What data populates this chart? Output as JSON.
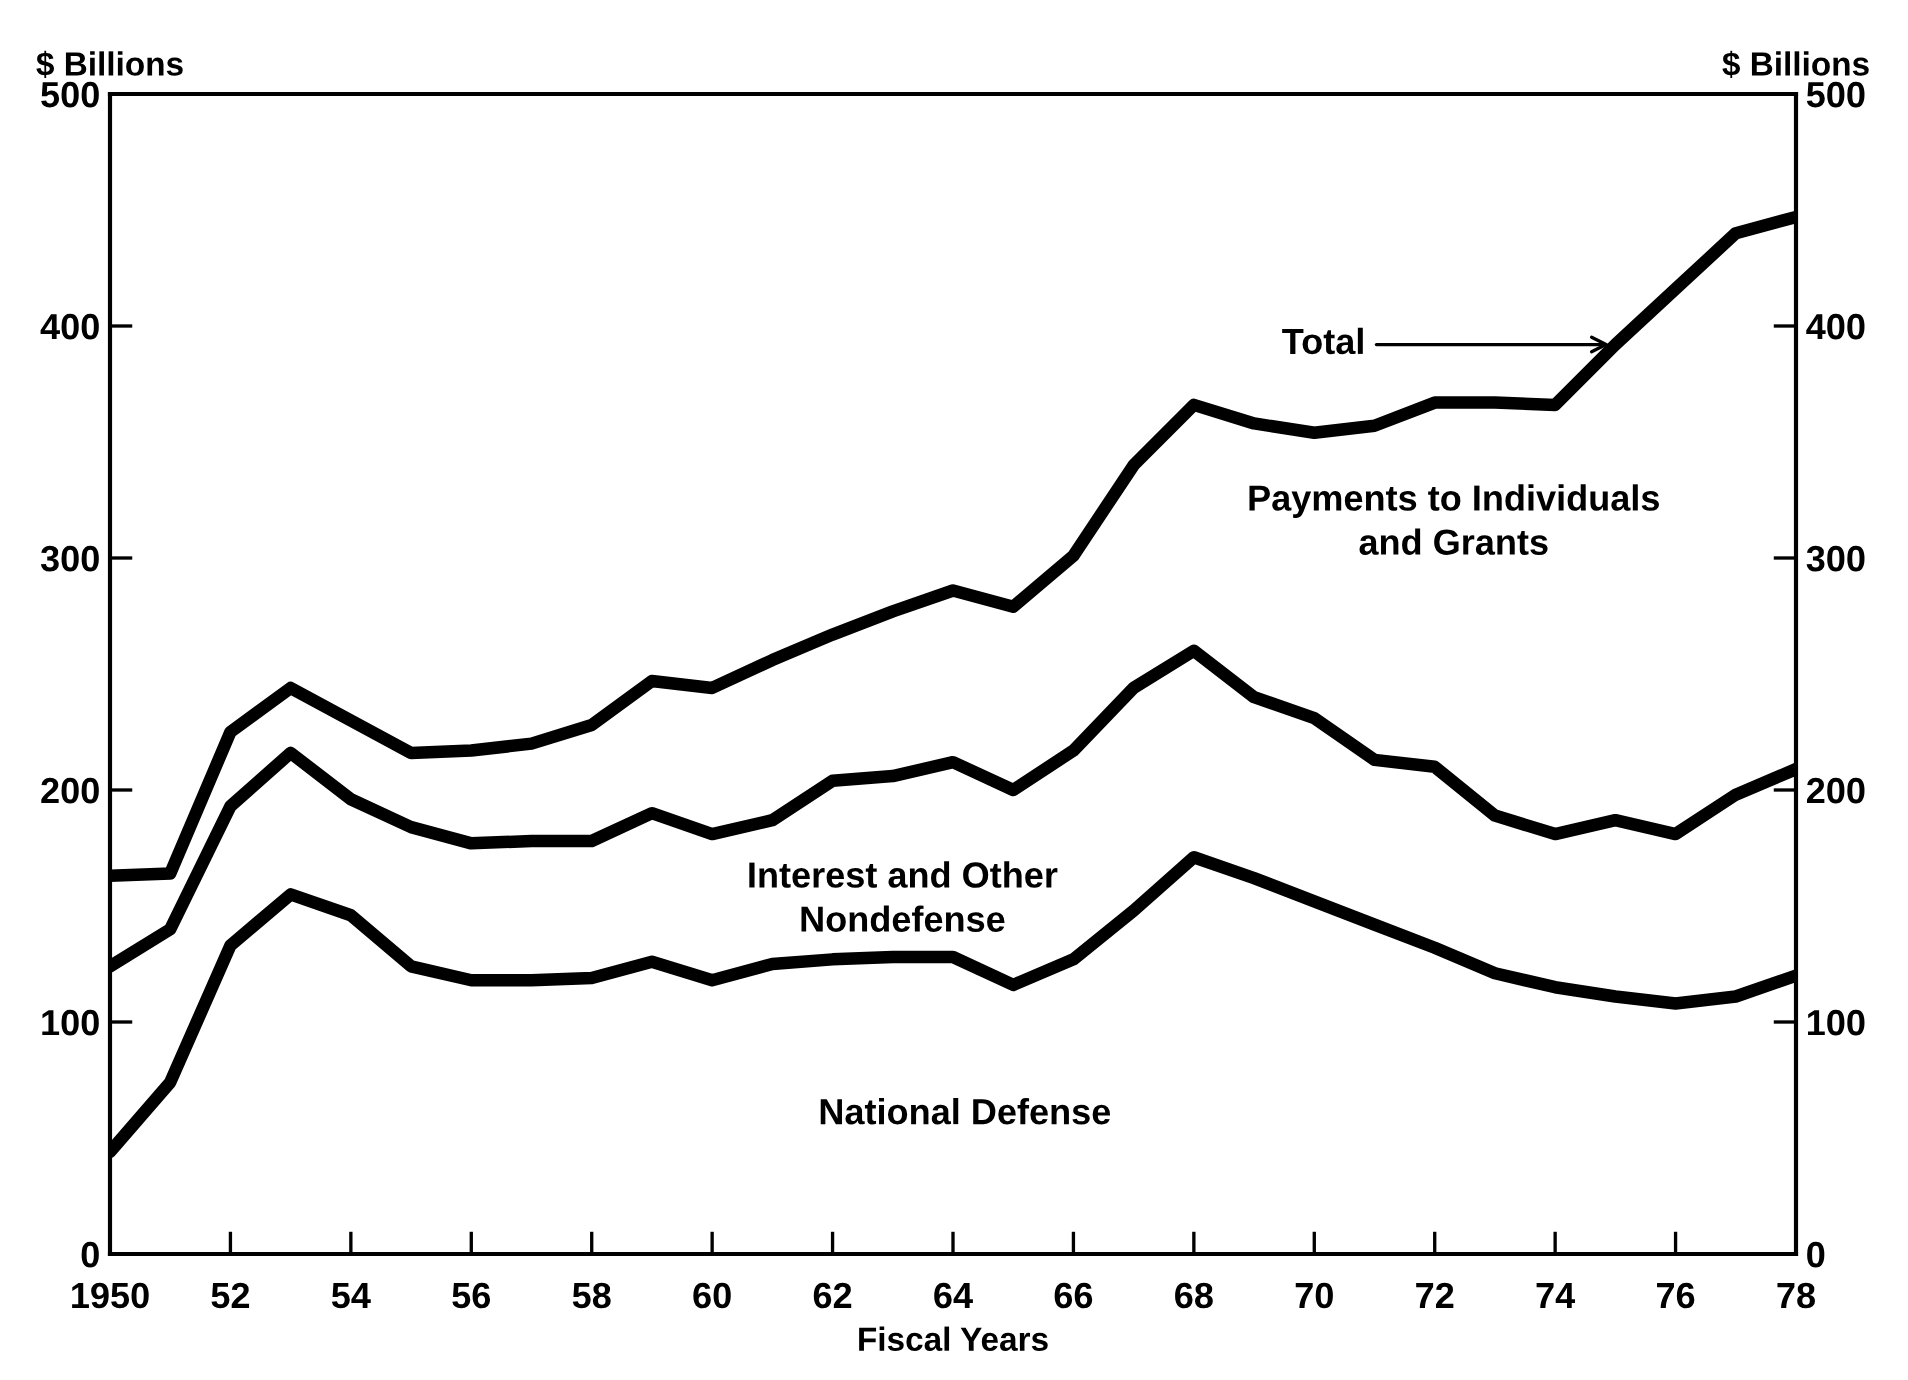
{
  "chart_data": {
    "type": "line",
    "xlabel": "Fiscal Years",
    "ylabel": "$ Billions",
    "y2label": "$ Billions",
    "x": [
      1950,
      1951,
      1952,
      1953,
      1954,
      1955,
      1956,
      1957,
      1958,
      1959,
      1960,
      1961,
      1962,
      1963,
      1964,
      1965,
      1966,
      1967,
      1968,
      1969,
      1970,
      1971,
      1972,
      1973,
      1974,
      1975,
      1976,
      1977,
      1978
    ],
    "series": [
      {
        "color": "#000000",
        "values": [
          163,
          164,
          225,
          244,
          230,
          216,
          217,
          220,
          228,
          247,
          244,
          256,
          267,
          277,
          286,
          279,
          301,
          340,
          366,
          358,
          354,
          357,
          367,
          367,
          366,
          392,
          416,
          440,
          447
        ]
      },
      {
        "color": "#000000",
        "values": [
          124,
          140,
          193,
          216,
          196,
          184,
          177,
          178,
          178,
          190,
          181,
          187,
          204,
          206,
          212,
          200,
          217,
          244,
          260,
          240,
          231,
          213,
          210,
          189,
          181,
          187,
          181,
          198,
          209
        ]
      },
      {
        "color": "#000000",
        "values": [
          44,
          74,
          133,
          155,
          146,
          124,
          118,
          118,
          119,
          126,
          118,
          125,
          127,
          128,
          128,
          116,
          127,
          148,
          171,
          162,
          152,
          142,
          132,
          121,
          115,
          111,
          108,
          111,
          120
        ]
      }
    ],
    "xlim": [
      1950,
      1978
    ],
    "xticks": [
      1950,
      {
        "value": 1952,
        "label": "52"
      },
      {
        "value": 1954,
        "label": "54"
      },
      {
        "value": 1956,
        "label": "56"
      },
      {
        "value": 1958,
        "label": "58"
      },
      {
        "value": 1960,
        "label": "60"
      },
      {
        "value": 1962,
        "label": "62"
      },
      {
        "value": 1964,
        "label": "64"
      },
      {
        "value": 1966,
        "label": "66"
      },
      {
        "value": 1968,
        "label": "68"
      },
      {
        "value": 1970,
        "label": "70"
      },
      {
        "value": 1972,
        "label": "72"
      },
      {
        "value": 1974,
        "label": "74"
      },
      {
        "value": 1976,
        "label": "76"
      },
      {
        "value": 1978,
        "label": "78"
      }
    ],
    "ylim": [
      0,
      500
    ],
    "yticks": [
      0,
      100,
      200,
      300,
      400,
      500
    ],
    "y2lim": [
      0,
      500
    ],
    "y2ticks": [
      0,
      100,
      200,
      300,
      400,
      500
    ],
    "annotations": [
      {
        "text": "Total",
        "x": 1975,
        "y": 392
      },
      "Payments to Individuals\nand Grants",
      "Interest and Other\nNondefense",
      "National Defense"
    ],
    "grid": false,
    "legend": false,
    "marker": "none",
    "line_style": "solid"
  }
}
